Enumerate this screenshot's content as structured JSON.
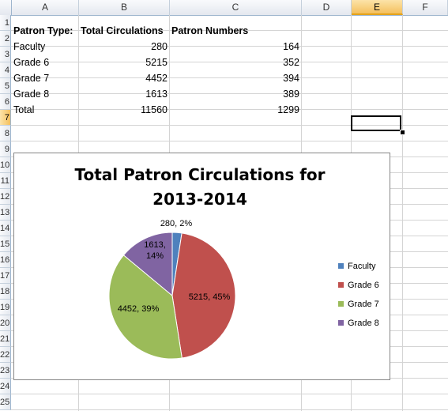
{
  "spreadsheet": {
    "columns": [
      "A",
      "B",
      "C",
      "D",
      "E",
      "F"
    ],
    "selected_column": "E",
    "rows": [
      "1",
      "2",
      "3",
      "4",
      "5",
      "6",
      "7",
      "8",
      "9",
      "10",
      "11",
      "12",
      "13",
      "14",
      "15",
      "16",
      "17",
      "18",
      "19",
      "20",
      "21",
      "22",
      "23",
      "24",
      "25"
    ],
    "selected_row": "7",
    "cells": {
      "A1": "Patron Type:",
      "B1": "Total Circulations",
      "C1": "Patron Numbers",
      "A2": "Faculty",
      "B2": "280",
      "C2": "164",
      "A3": "Grade 6",
      "B3": "5215",
      "C3": "352",
      "A4": "Grade 7",
      "B4": "4452",
      "C4": "394",
      "A5": "Grade 8",
      "B5": "1613",
      "C5": "389",
      "A6": "Total",
      "B6": "11560",
      "C6": "1299"
    }
  },
  "chart_data": {
    "type": "pie",
    "title": "Total Patron Circulations for 2013-2014",
    "categories": [
      "Faculty",
      "Grade 6",
      "Grade 7",
      "Grade 8"
    ],
    "values": [
      280,
      5215,
      4452,
      1613
    ],
    "data_labels": [
      "280, 2%",
      "5215, 45%",
      "4452, 39%",
      "1613, 14%"
    ],
    "colors": [
      "#4f81bd",
      "#c0504d",
      "#9bbb59",
      "#8064a2"
    ],
    "legend_position": "right"
  }
}
